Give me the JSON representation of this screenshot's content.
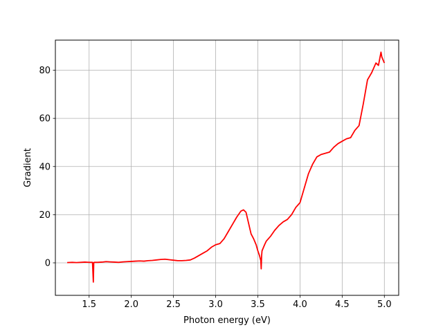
{
  "chart_data": {
    "type": "line",
    "title": "",
    "xlabel": "Photon energy (eV)",
    "ylabel": "Gradient",
    "xlim": [
      1.1,
      5.17
    ],
    "ylim": [
      -13.5,
      92.5
    ],
    "xticks": [
      1.5,
      2.0,
      2.5,
      3.0,
      3.5,
      4.0,
      4.5,
      5.0
    ],
    "xtick_labels": [
      "1.5",
      "2.0",
      "2.5",
      "3.0",
      "3.5",
      "4.0",
      "4.5",
      "5.0"
    ],
    "yticks": [
      0,
      20,
      40,
      60,
      80
    ],
    "ytick_labels": [
      "0",
      "20",
      "40",
      "60",
      "80"
    ],
    "grid": true,
    "legend": "none",
    "series": [
      {
        "color": "#ff0000",
        "x": [
          1.24,
          1.3,
          1.35,
          1.4,
          1.45,
          1.5,
          1.54,
          1.55,
          1.555,
          1.56,
          1.6,
          1.65,
          1.7,
          1.75,
          1.8,
          1.85,
          1.9,
          1.95,
          2.0,
          2.05,
          2.1,
          2.15,
          2.2,
          2.25,
          2.3,
          2.35,
          2.4,
          2.45,
          2.5,
          2.55,
          2.6,
          2.65,
          2.7,
          2.75,
          2.8,
          2.85,
          2.9,
          2.95,
          3.0,
          3.05,
          3.1,
          3.15,
          3.2,
          3.25,
          3.3,
          3.33,
          3.36,
          3.38,
          3.4,
          3.42,
          3.45,
          3.48,
          3.5,
          3.52,
          3.535,
          3.54,
          3.545,
          3.55,
          3.58,
          3.6,
          3.65,
          3.7,
          3.75,
          3.8,
          3.85,
          3.9,
          3.95,
          4.0,
          4.05,
          4.1,
          4.15,
          4.2,
          4.25,
          4.3,
          4.35,
          4.4,
          4.45,
          4.5,
          4.55,
          4.6,
          4.65,
          4.7,
          4.75,
          4.8,
          4.85,
          4.9,
          4.93,
          4.96,
          4.97,
          5.0
        ],
        "y": [
          0.1,
          0.2,
          0.1,
          0.2,
          0.3,
          0.2,
          0.2,
          -8.0,
          0.1,
          0.2,
          0.2,
          0.3,
          0.5,
          0.4,
          0.3,
          0.2,
          0.4,
          0.5,
          0.6,
          0.7,
          0.8,
          0.7,
          0.9,
          1.0,
          1.2,
          1.4,
          1.5,
          1.3,
          1.1,
          0.9,
          0.9,
          1.0,
          1.2,
          2.0,
          3.0,
          4.0,
          5.0,
          6.5,
          7.5,
          8.0,
          10.0,
          13.0,
          16.0,
          19.0,
          21.5,
          22.0,
          21.0,
          18.0,
          15.0,
          12.0,
          10.0,
          7.5,
          5.0,
          3.0,
          1.0,
          -2.5,
          3.0,
          5.0,
          7.5,
          9.0,
          11.0,
          13.5,
          15.5,
          17.0,
          18.0,
          20.0,
          23.0,
          25.0,
          31.0,
          37.0,
          41.0,
          44.0,
          45.0,
          45.5,
          46.0,
          48.0,
          49.5,
          50.5,
          51.5,
          52.0,
          55.0,
          57.0,
          66.0,
          76.0,
          79.0,
          83.0,
          82.0,
          87.5,
          85.5,
          83.0
        ]
      }
    ]
  }
}
